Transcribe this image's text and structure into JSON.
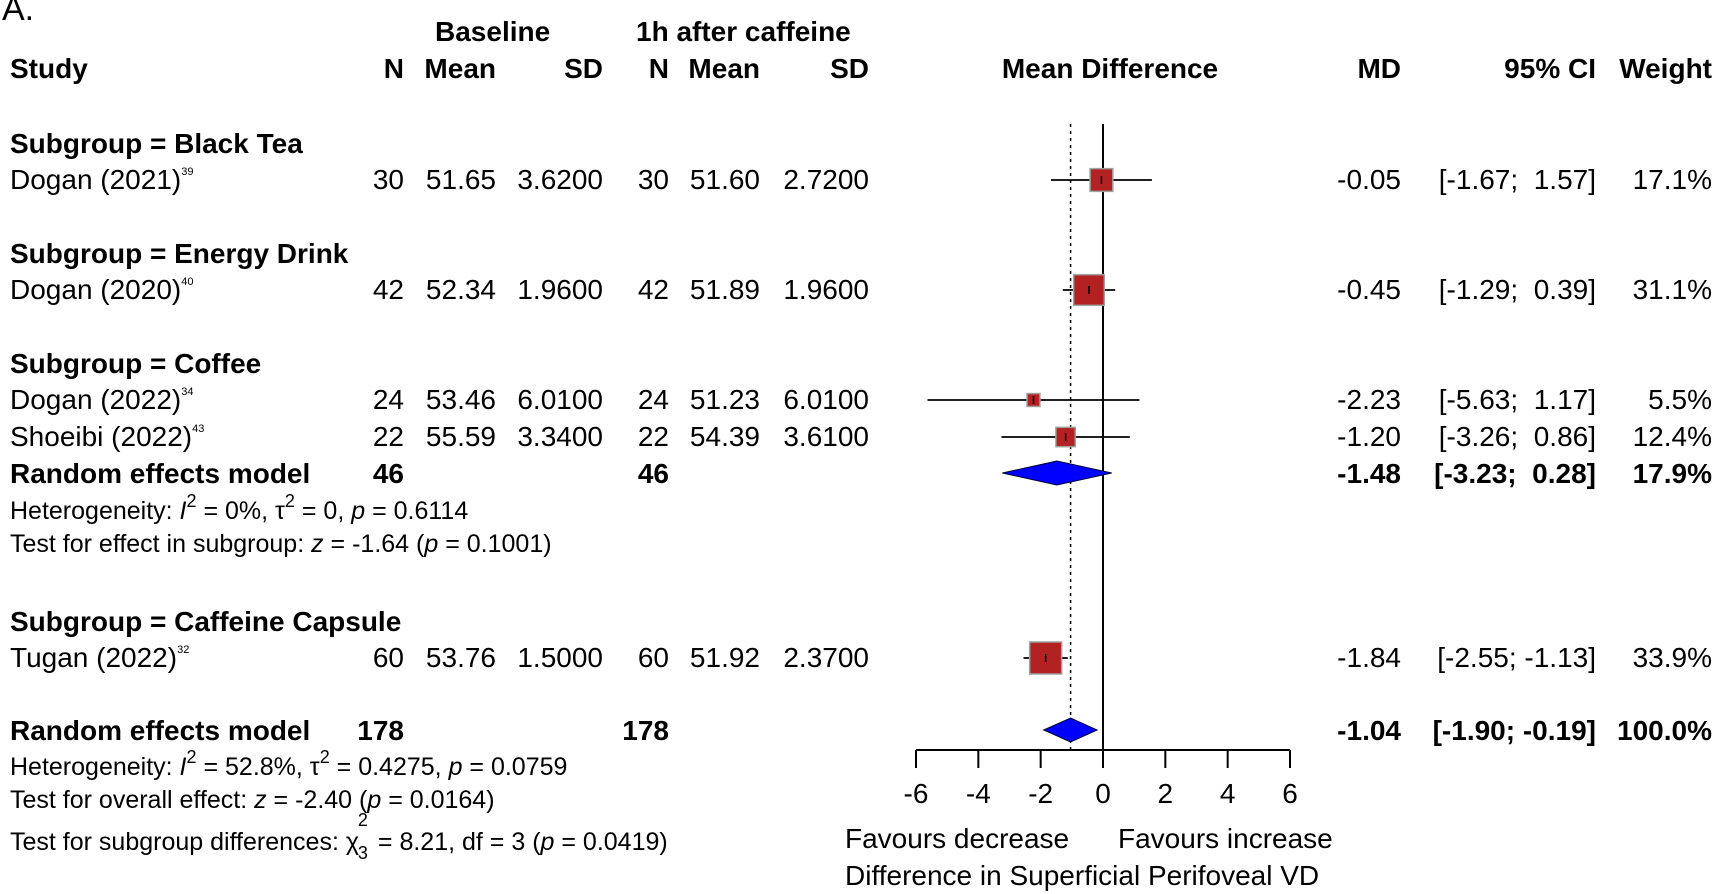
{
  "panel_label": "A.",
  "headers": {
    "baseline": "Baseline",
    "after": "1h after caffeine",
    "study": "Study",
    "n1": "N",
    "mean1": "Mean",
    "sd1": "SD",
    "n2": "N",
    "mean2": "Mean",
    "sd2": "SD",
    "plot": "Mean Difference",
    "md": "MD",
    "ci": "95% CI",
    "weight": "Weight"
  },
  "subgroups": [
    {
      "label": "Subgroup = Black Tea",
      "studies": [
        {
          "name": "Dogan (2021)",
          "ref": "39",
          "n1": "30",
          "mean1": "51.65",
          "sd1": "3.6200",
          "n2": "30",
          "mean2": "51.60",
          "sd2": "2.7200",
          "md_text": "-0.05",
          "ci_text": "[-1.67;  1.57]",
          "weight": "17.1%"
        }
      ]
    },
    {
      "label": "Subgroup = Energy Drink",
      "studies": [
        {
          "name": "Dogan (2020)",
          "ref": "40",
          "n1": "42",
          "mean1": "52.34",
          "sd1": "1.9600",
          "n2": "42",
          "mean2": "51.89",
          "sd2": "1.9600",
          "md_text": "-0.45",
          "ci_text": "[-1.29;  0.39]",
          "weight": "31.1%"
        }
      ]
    },
    {
      "label": "Subgroup = Coffee",
      "studies": [
        {
          "name": "Dogan (2022)",
          "ref": "34",
          "n1": "24",
          "mean1": "53.46",
          "sd1": "6.0100",
          "n2": "24",
          "mean2": "51.23",
          "sd2": "6.0100",
          "md_text": "-2.23",
          "ci_text": "[-5.63;  1.17]",
          "weight": "5.5%"
        },
        {
          "name": "Shoeibi (2022)",
          "ref": "43",
          "n1": "22",
          "mean1": "55.59",
          "sd1": "3.3400",
          "n2": "22",
          "mean2": "54.39",
          "sd2": "3.6100",
          "md_text": "-1.20",
          "ci_text": "[-3.26;  0.86]",
          "weight": "12.4%"
        }
      ],
      "pooled": {
        "label": "Random effects model",
        "n1": "46",
        "n2": "46",
        "md_text": "-1.48",
        "ci_text": "[-3.23;  0.28]",
        "weight": "17.9%"
      },
      "heterogeneity": {
        "prefix": "Heterogeneity: ",
        "i2_sym": "I",
        "i2_val": " = 0%, ",
        "tau_sym": "τ",
        "tau_val": " = 0, ",
        "p_sym": "p",
        "p_val": " = 0.6114"
      },
      "test": {
        "prefix": "Test for effect in subgroup: ",
        "z_sym": "z",
        "z_val": " = -1.64 (",
        "p_sym": "p",
        "p_val": " = 0.1001)"
      }
    },
    {
      "label": "Subgroup = Caffeine Capsule",
      "studies": [
        {
          "name": "Tugan (2022)",
          "ref": "32",
          "n1": "60",
          "mean1": "53.76",
          "sd1": "1.5000",
          "n2": "60",
          "mean2": "51.92",
          "sd2": "2.3700",
          "md_text": "-1.84",
          "ci_text": "[-2.55; -1.13]",
          "weight": "33.9%"
        }
      ]
    }
  ],
  "overall": {
    "label": "Random effects model",
    "n1": "178",
    "n2": "178",
    "md_text": "-1.04",
    "ci_text": "[-1.90; -0.19]",
    "weight": "100.0%",
    "heterogeneity": {
      "prefix": "Heterogeneity: ",
      "i2_sym": "I",
      "i2_val": " = 52.8%, ",
      "tau_sym": "τ",
      "tau_val": " = 0.4275, ",
      "p_sym": "p",
      "p_val": " = 0.0759"
    },
    "test": {
      "prefix": "Test for overall effect: ",
      "z_sym": "z",
      "z_val": " = -2.40 (",
      "p_sym": "p",
      "p_val": " = 0.0164)"
    },
    "subgroup_test": {
      "prefix": "Test for subgroup differences: ",
      "chi_sym": "χ",
      "chi_sub": "3",
      "chi_val": " = 8.21, df = 3 (",
      "p_sym": "p",
      "p_val": " = 0.0419)"
    }
  },
  "colors": {
    "square": "#b22222",
    "square_edge": "#a0a0a0",
    "diamond": "#0000ff",
    "line": "#000000"
  },
  "chart_data": {
    "type": "forest",
    "xlabel": "Difference in Superficial Perifoveal VD",
    "favours_left": "Favours decrease",
    "favours_right": "Favours increase",
    "xlim": [
      -6,
      6
    ],
    "xticks": [
      -6,
      -4,
      -2,
      0,
      2,
      4,
      6
    ],
    "reference_line": 0,
    "overall_line": -1.04,
    "studies": [
      {
        "label": "Dogan (2021)",
        "md": -0.05,
        "lower": -1.67,
        "upper": 1.57,
        "weight": 17.1
      },
      {
        "label": "Dogan (2020)",
        "md": -0.45,
        "lower": -1.29,
        "upper": 0.39,
        "weight": 31.1
      },
      {
        "label": "Dogan (2022)",
        "md": -2.23,
        "lower": -5.63,
        "upper": 1.17,
        "weight": 5.5
      },
      {
        "label": "Shoeibi (2022)",
        "md": -1.2,
        "lower": -3.26,
        "upper": 0.86,
        "weight": 12.4
      },
      {
        "label": "Tugan (2022)",
        "md": -1.84,
        "lower": -2.55,
        "upper": -1.13,
        "weight": 33.9
      }
    ],
    "pooled": [
      {
        "label": "Random effects model (Coffee)",
        "md": -1.48,
        "lower": -3.23,
        "upper": 0.28
      },
      {
        "label": "Random effects model (Overall)",
        "md": -1.04,
        "lower": -1.9,
        "upper": -0.19
      }
    ]
  }
}
